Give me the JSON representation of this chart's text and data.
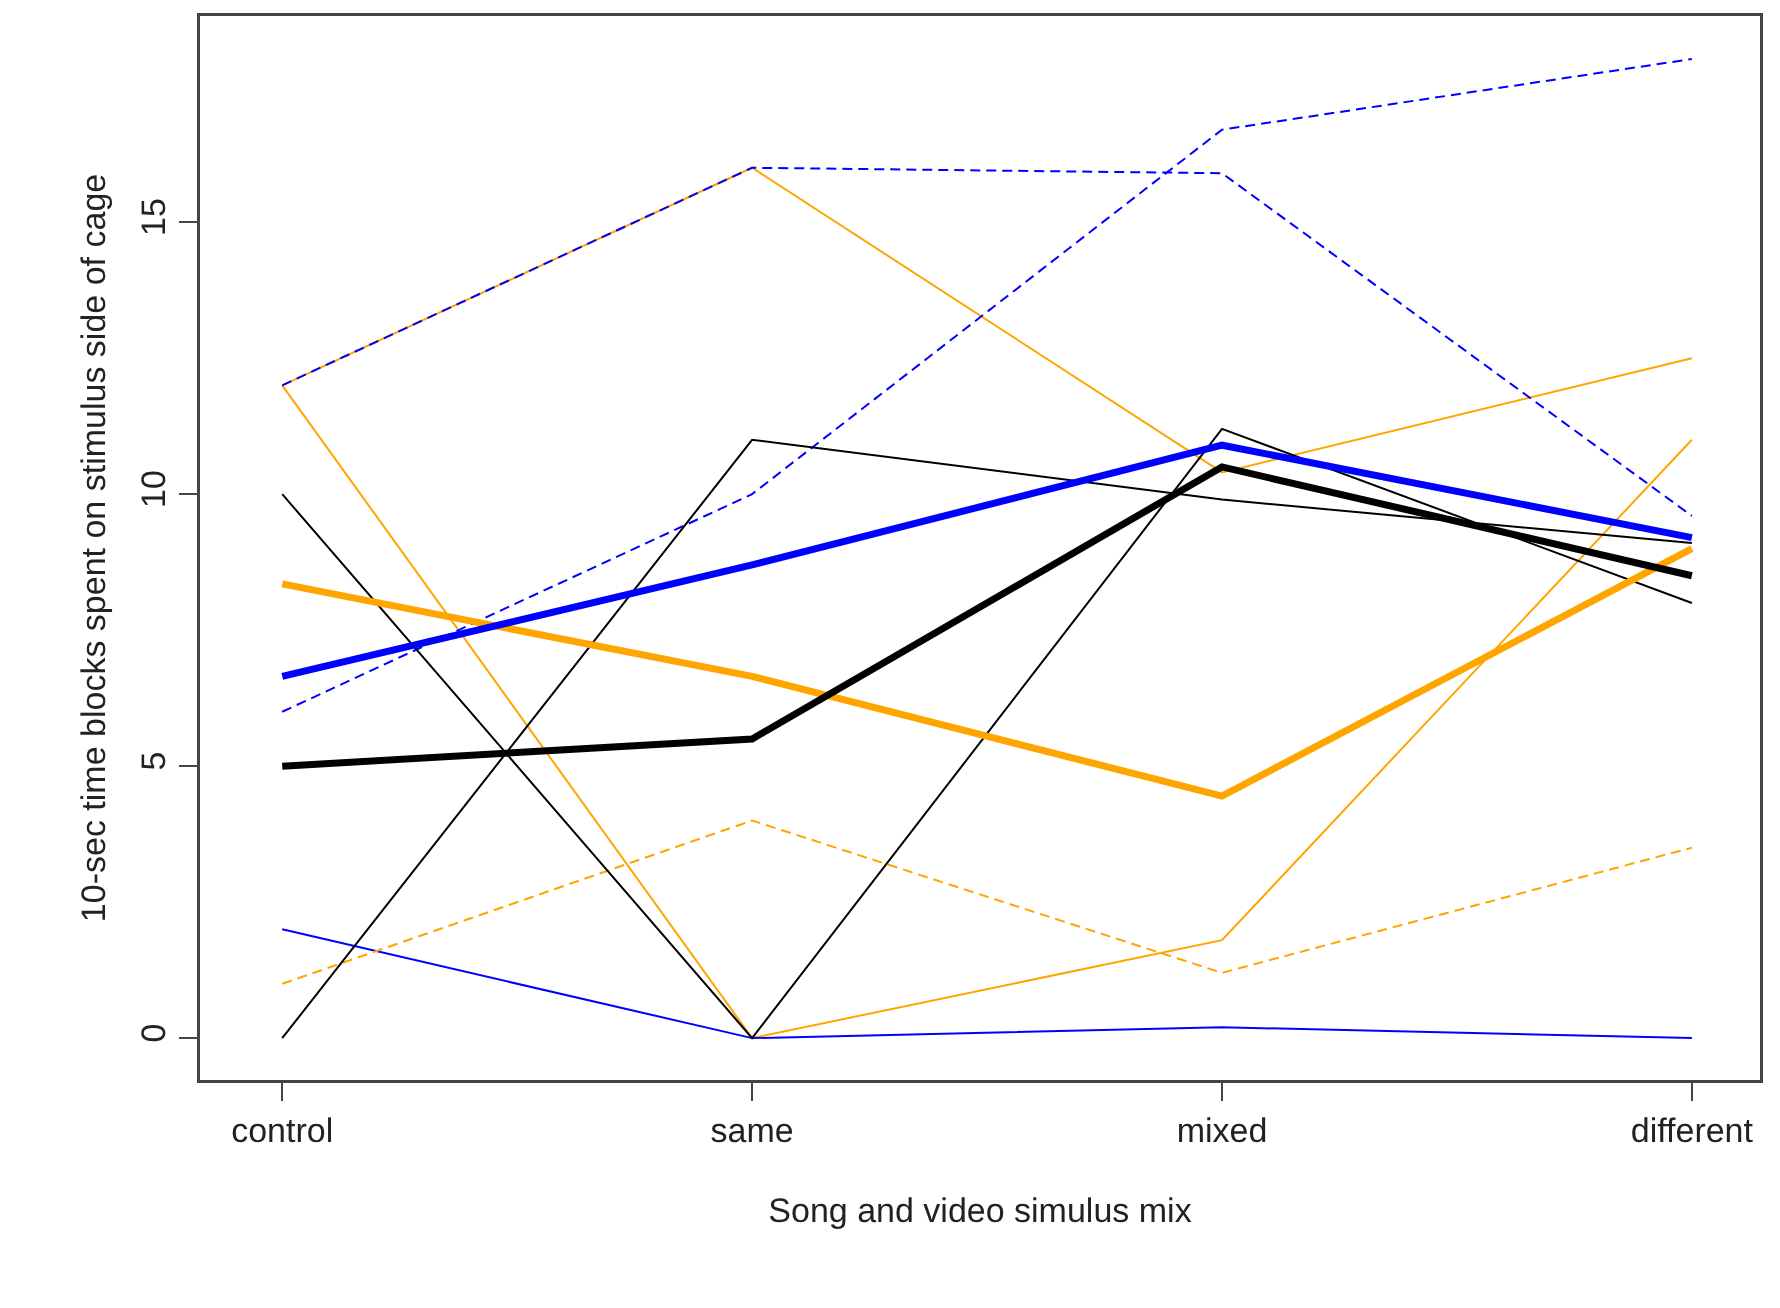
{
  "chart_data": {
    "type": "line",
    "xlabel": "Song and video simulus mix",
    "ylabel": "10-sec time blocks spent on stimulus side of cage",
    "categories": [
      "control",
      "same",
      "mixed",
      "different"
    ],
    "ylim": [
      -0.77,
      18.79
    ],
    "yticks": [
      0,
      5,
      10,
      15
    ],
    "grid": false,
    "marker": "none",
    "series": [
      {
        "color": "#ffa500",
        "line_style": "solid",
        "values": [
          12,
          16,
          10.4,
          12.5
        ]
      },
      {
        "color": "#ffa500",
        "line_style": "solid",
        "values": [
          12,
          0,
          1.8,
          11
        ]
      },
      {
        "color": "#0000ff",
        "line_style": "dashed",
        "values": [
          12,
          16,
          15.9,
          9.6
        ]
      },
      {
        "color": "#0000ff",
        "line_style": "dashed",
        "values": [
          6,
          10,
          16.7,
          18
        ]
      },
      {
        "color": "#0000ff",
        "line_style": "solid",
        "values": [
          2,
          0,
          0.2,
          0
        ]
      },
      {
        "color": "#ffa500",
        "line_style": "dashed",
        "values": [
          1,
          4,
          1.2,
          3.5
        ]
      },
      {
        "color": "#000000",
        "line_style": "solid",
        "values": [
          10,
          0,
          11.2,
          8
        ]
      },
      {
        "color": "#000000",
        "line_style": "solid",
        "values": [
          0,
          11,
          9.9,
          9.1
        ]
      },
      {
        "color": "#ffa500",
        "line_style": "solid",
        "values": [
          8.35,
          6.65,
          4.45,
          9
        ]
      },
      {
        "color": "#000000",
        "line_style": "solid",
        "values": [
          5,
          5.5,
          10.5,
          8.5
        ]
      },
      {
        "color": "#0000ff",
        "line_style": "solid",
        "values": [
          6.65,
          8.7,
          10.9,
          9.2
        ]
      }
    ]
  }
}
